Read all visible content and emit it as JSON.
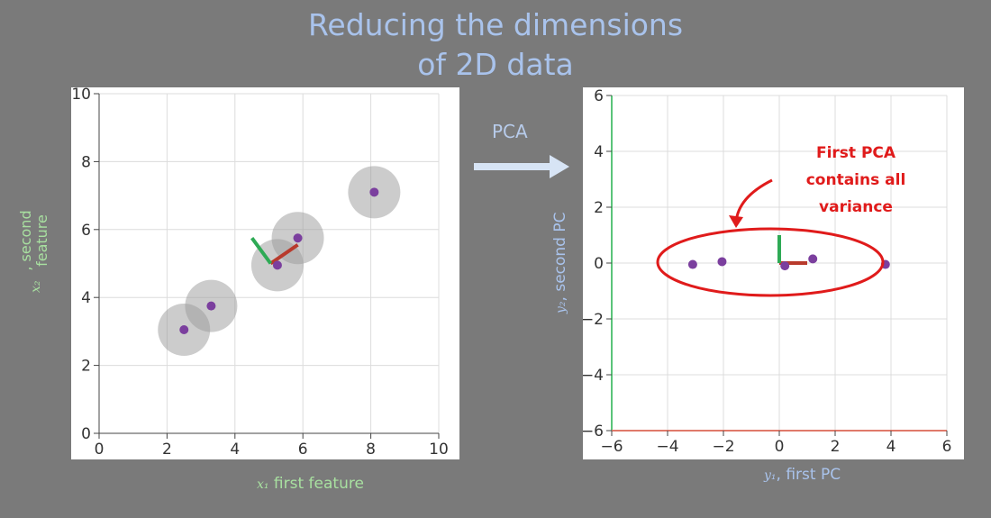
{
  "title": {
    "line1": "Reducing the dimensions",
    "line2": "of 2D data"
  },
  "transform_label": "PCA",
  "left_xlabel": {
    "var": "x₁",
    "text": "first feature"
  },
  "left_ylabel": {
    "var": "x₂",
    "text": ", second feature"
  },
  "right_xlabel": {
    "var": "y₁",
    "text": ", first PC"
  },
  "right_ylabel": {
    "var": "y₂",
    "text": ", second PC"
  },
  "annotation": [
    "First PCA",
    "contains all",
    "variance"
  ],
  "colors": {
    "background": "#7a7a7a",
    "point": "#7b3f9e",
    "circle": "#999999",
    "grid": "#dcdcdc",
    "pc1": "#b83a2c",
    "pc2": "#2eaa55",
    "annotation": "#e01b1b",
    "label_green": "#a8e0a0",
    "label_blue": "#a9c3ec"
  },
  "chart_data": [
    {
      "type": "scatter",
      "xlim": [
        0,
        10
      ],
      "ylim": [
        0,
        10
      ],
      "xticks": [
        0,
        2,
        4,
        6,
        8,
        10
      ],
      "yticks": [
        0,
        2,
        4,
        6,
        8,
        10
      ],
      "grid": true,
      "points": [
        {
          "x": 2.5,
          "y": 3.05
        },
        {
          "x": 3.3,
          "y": 3.75
        },
        {
          "x": 5.25,
          "y": 4.95
        },
        {
          "x": 5.85,
          "y": 5.75
        },
        {
          "x": 8.1,
          "y": 7.1
        }
      ],
      "components": [
        {
          "name": "PC1",
          "from": [
            5.05,
            5.0
          ],
          "to": [
            5.85,
            5.55
          ]
        },
        {
          "name": "PC2",
          "from": [
            5.05,
            5.0
          ],
          "to": [
            4.5,
            5.75
          ]
        }
      ]
    },
    {
      "type": "scatter",
      "xlim": [
        -6,
        6
      ],
      "ylim": [
        -6,
        6
      ],
      "xticks": [
        -6,
        -4,
        -2,
        0,
        2,
        4,
        6
      ],
      "yticks": [
        -6,
        -4,
        -2,
        0,
        2,
        4,
        6
      ],
      "grid": true,
      "points": [
        {
          "x": -3.1,
          "y": -0.05
        },
        {
          "x": -2.05,
          "y": 0.05
        },
        {
          "x": 0.2,
          "y": -0.1
        },
        {
          "x": 1.2,
          "y": 0.15
        },
        {
          "x": 3.8,
          "y": -0.05
        }
      ],
      "components": [
        {
          "name": "PC1",
          "from": [
            0,
            0
          ],
          "to": [
            1.0,
            0
          ]
        },
        {
          "name": "PC2",
          "from": [
            0,
            0
          ],
          "to": [
            0,
            1.0
          ]
        }
      ]
    }
  ]
}
